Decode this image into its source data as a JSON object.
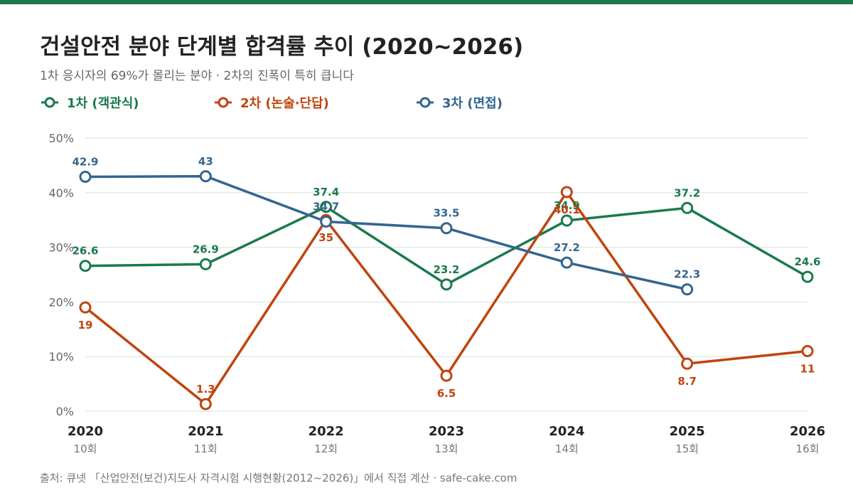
{
  "title": "건설안전 분야 단계별 합격률 추이 (2020~2026)",
  "subtitle": "1차 응시자의 69%가 몰리는 분야 · 2차의 진폭이 특히 큽니다",
  "source": "출처: 큐넷 「산업안전(보건)지도사 자격시험 시행현황(2012~2026)」에서 직접 계산 · safe-cake.com",
  "colors": {
    "accent_bar": "#1a7a4c",
    "grid": "#e3ebe6",
    "axis_text": "#666666"
  },
  "chart_data": {
    "type": "line",
    "x": [
      "2020",
      "2021",
      "2022",
      "2023",
      "2024",
      "2025",
      "2026"
    ],
    "x_sublabels": [
      "10회",
      "11회",
      "12회",
      "13회",
      "14회",
      "15회",
      "16회"
    ],
    "ylim": [
      0,
      50
    ],
    "yticks": [
      0,
      10,
      20,
      30,
      40,
      50
    ],
    "ytick_labels": [
      "0%",
      "10%",
      "20%",
      "30%",
      "40%",
      "50%"
    ],
    "grid": true,
    "legend_position": "top-left",
    "series": [
      {
        "name": "1차 (객관식)",
        "color": "#1a7a4c",
        "values": [
          26.6,
          26.9,
          37.4,
          23.2,
          34.9,
          37.2,
          24.6
        ],
        "labels": [
          "26.6",
          "26.9",
          "37.4",
          "23.2",
          "34.9",
          "37.2",
          "24.6"
        ],
        "label_pos": [
          "above",
          "above",
          "above",
          "above",
          "above",
          "above",
          "above"
        ]
      },
      {
        "name": "2차 (논술·단답)",
        "color": "#c0440f",
        "values": [
          19,
          1.3,
          35,
          6.5,
          40.1,
          8.7,
          11
        ],
        "labels": [
          "19",
          "1.3",
          "35",
          "6.5",
          "40.1",
          "8.7",
          "11"
        ],
        "label_pos": [
          "below",
          "above",
          "below",
          "below",
          "below",
          "below",
          "below"
        ]
      },
      {
        "name": "3차 (면접)",
        "color": "#33658f",
        "values": [
          42.9,
          43,
          34.7,
          33.5,
          27.2,
          22.3,
          null
        ],
        "labels": [
          "42.9",
          "43",
          "34.7",
          "33.5",
          "27.2",
          "22.3",
          ""
        ],
        "label_pos": [
          "above",
          "above",
          "above",
          "above",
          "above",
          "above",
          "above"
        ]
      }
    ]
  }
}
